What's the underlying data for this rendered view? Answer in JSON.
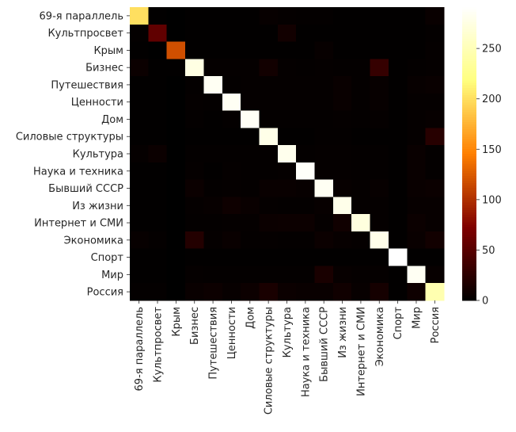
{
  "chart_data": {
    "type": "heatmap",
    "title": "",
    "xlabel": "",
    "ylabel": "",
    "categories": [
      "69-я параллель",
      "Культпросвет",
      "Крым",
      "Бизнес",
      "Путешествия",
      "Ценности",
      "Дом",
      "Силовые структуры",
      "Культура",
      "Наука и техника",
      "Бывший СССР",
      "Из жизни",
      "Интернет и СМИ",
      "Экономика",
      "Спорт",
      "Мир",
      "Россия"
    ],
    "values": [
      [
        200,
        1,
        0,
        1,
        1,
        1,
        1,
        4,
        3,
        2,
        2,
        1,
        1,
        1,
        1,
        1,
        5
      ],
      [
        2,
        55,
        0,
        1,
        1,
        1,
        1,
        1,
        10,
        1,
        1,
        1,
        1,
        1,
        1,
        1,
        2
      ],
      [
        1,
        0,
        118,
        1,
        1,
        1,
        1,
        1,
        1,
        1,
        4,
        1,
        1,
        1,
        1,
        1,
        3
      ],
      [
        6,
        1,
        1,
        275,
        3,
        3,
        3,
        10,
        3,
        2,
        3,
        2,
        2,
        30,
        1,
        2,
        3
      ],
      [
        1,
        1,
        0,
        2,
        284,
        2,
        3,
        3,
        3,
        3,
        3,
        5,
        2,
        4,
        1,
        4,
        5
      ],
      [
        1,
        1,
        0,
        3,
        2,
        285,
        3,
        3,
        3,
        3,
        3,
        5,
        2,
        4,
        1,
        3,
        3
      ],
      [
        1,
        1,
        0,
        2,
        1,
        2,
        286,
        2,
        2,
        2,
        2,
        3,
        2,
        3,
        1,
        3,
        4
      ],
      [
        1,
        1,
        0,
        1,
        1,
        1,
        1,
        278,
        1,
        1,
        2,
        2,
        1,
        1,
        1,
        3,
        22
      ],
      [
        3,
        6,
        0,
        2,
        2,
        2,
        2,
        2,
        281,
        2,
        3,
        3,
        2,
        2,
        1,
        5,
        2
      ],
      [
        1,
        1,
        0,
        3,
        1,
        3,
        2,
        2,
        3,
        288,
        3,
        3,
        2,
        2,
        1,
        5,
        2
      ],
      [
        1,
        1,
        0,
        6,
        2,
        3,
        2,
        5,
        5,
        4,
        284,
        4,
        3,
        4,
        1,
        5,
        6
      ],
      [
        1,
        1,
        0,
        3,
        4,
        8,
        5,
        3,
        2,
        2,
        4,
        279,
        3,
        3,
        1,
        4,
        4
      ],
      [
        1,
        1,
        0,
        2,
        2,
        3,
        3,
        6,
        7,
        7,
        3,
        9,
        272,
        3,
        1,
        6,
        4
      ],
      [
        4,
        2,
        0,
        20,
        3,
        5,
        2,
        3,
        2,
        2,
        6,
        4,
        3,
        279,
        1,
        5,
        10
      ],
      [
        1,
        1,
        0,
        1,
        1,
        1,
        1,
        1,
        1,
        1,
        1,
        1,
        1,
        1,
        291,
        1,
        1
      ],
      [
        1,
        1,
        0,
        3,
        2,
        2,
        2,
        2,
        2,
        2,
        14,
        4,
        3,
        3,
        1,
        284,
        4
      ],
      [
        2,
        2,
        0,
        5,
        7,
        4,
        7,
        14,
        6,
        5,
        5,
        9,
        4,
        12,
        1,
        8,
        246
      ]
    ],
    "colorbar": {
      "colormap": "afmhot",
      "range": [
        0,
        291
      ],
      "ticks": [
        0,
        50,
        100,
        150,
        200,
        250
      ]
    },
    "grid": false,
    "legend": "colorbar right"
  }
}
